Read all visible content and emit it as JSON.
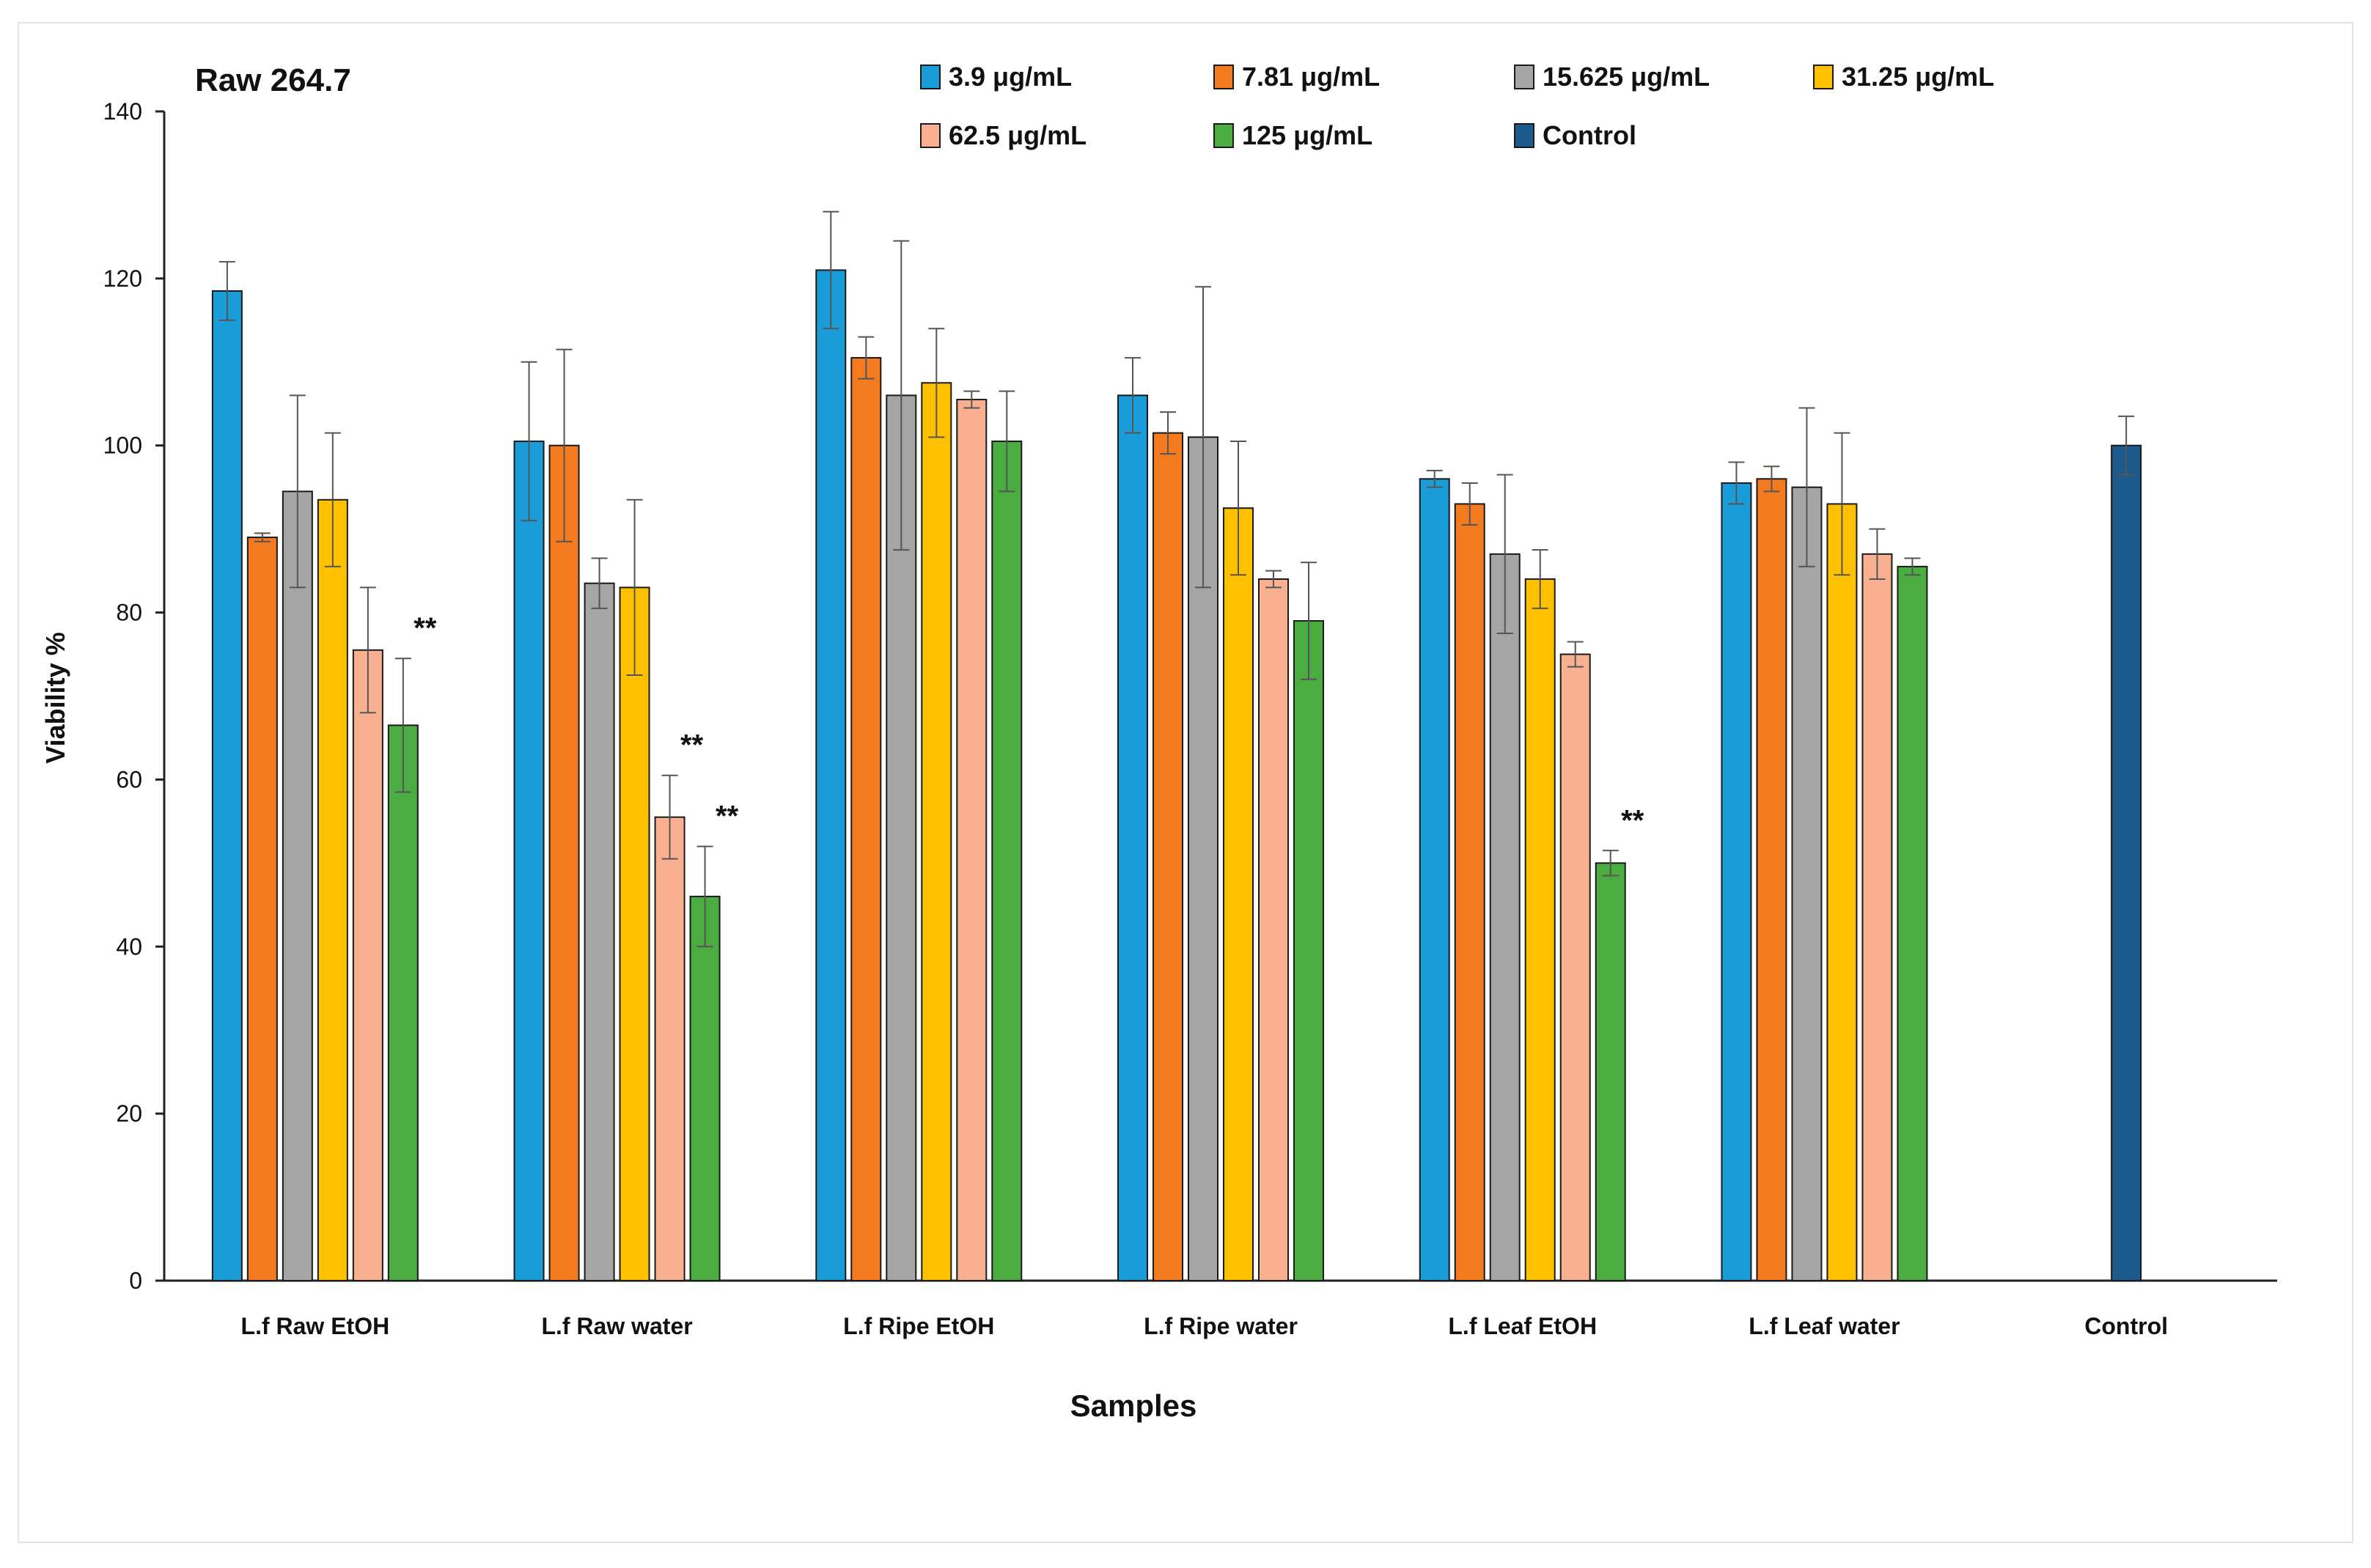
{
  "chart_data": {
    "type": "bar",
    "title": "Raw 264.7",
    "xlabel": "Samples",
    "ylabel": "Viability %",
    "ylim": [
      0,
      140
    ],
    "yticks": [
      0,
      20,
      40,
      60,
      80,
      100,
      120,
      140
    ],
    "legend_position": "top",
    "grid": false,
    "categories": [
      "L.f Raw EtOH",
      "L.f Raw water",
      "L.f Ripe EtOH",
      "L.f Ripe water",
      "L.f Leaf EtOH",
      "L.f Leaf water",
      "Control"
    ],
    "series": [
      {
        "name": "3.9 μg/mL",
        "color": "#1a9cd8",
        "values": [
          118.5,
          100.5,
          121,
          106,
          96,
          95.5,
          null
        ],
        "errors": [
          3.5,
          9.5,
          7,
          4.5,
          1,
          2.5,
          null
        ],
        "significance": [
          "",
          "",
          "",
          "",
          "",
          "",
          ""
        ]
      },
      {
        "name": "7.81 μg/mL",
        "color": "#f47a20",
        "values": [
          89,
          100,
          110.5,
          101.5,
          93,
          96,
          null
        ],
        "errors": [
          0.5,
          11.5,
          2.5,
          2.5,
          2.5,
          1.5,
          null
        ],
        "significance": [
          "",
          "",
          "",
          "",
          "",
          "",
          ""
        ]
      },
      {
        "name": "15.625 μg/mL",
        "color": "#a5a5a5",
        "values": [
          94.5,
          83.5,
          106,
          101,
          87,
          95,
          null
        ],
        "errors": [
          11.5,
          3,
          18.5,
          18,
          9.5,
          9.5,
          null
        ],
        "significance": [
          "",
          "",
          "",
          "",
          "",
          "",
          ""
        ]
      },
      {
        "name": "31.25 μg/mL",
        "color": "#ffc000",
        "values": [
          93.5,
          83,
          107.5,
          92.5,
          84,
          93,
          null
        ],
        "errors": [
          8,
          10.5,
          6.5,
          8,
          3.5,
          8.5,
          null
        ],
        "significance": [
          "",
          "",
          "",
          "",
          "",
          "",
          ""
        ]
      },
      {
        "name": "62.5 μg/mL",
        "color": "#f8b090",
        "values": [
          75.5,
          55.5,
          105.5,
          84,
          75,
          87,
          null
        ],
        "errors": [
          7.5,
          5,
          1,
          1,
          1.5,
          3,
          null
        ],
        "significance": [
          "",
          "**",
          "",
          "",
          "",
          "",
          ""
        ]
      },
      {
        "name": "125 μg/mL",
        "color": "#4aac41",
        "values": [
          66.5,
          46,
          100.5,
          79,
          50,
          85.5,
          null
        ],
        "errors": [
          8,
          6,
          6,
          7,
          1.5,
          1,
          null
        ],
        "significance": [
          "**",
          "**",
          "",
          "",
          "**",
          "",
          ""
        ]
      },
      {
        "name": "Control",
        "color": "#1c5b8c",
        "values": [
          null,
          null,
          null,
          null,
          null,
          null,
          100
        ],
        "errors": [
          null,
          null,
          null,
          null,
          null,
          null,
          3.5
        ],
        "significance": [
          "",
          "",
          "",
          "",
          "",
          "",
          ""
        ]
      }
    ]
  }
}
